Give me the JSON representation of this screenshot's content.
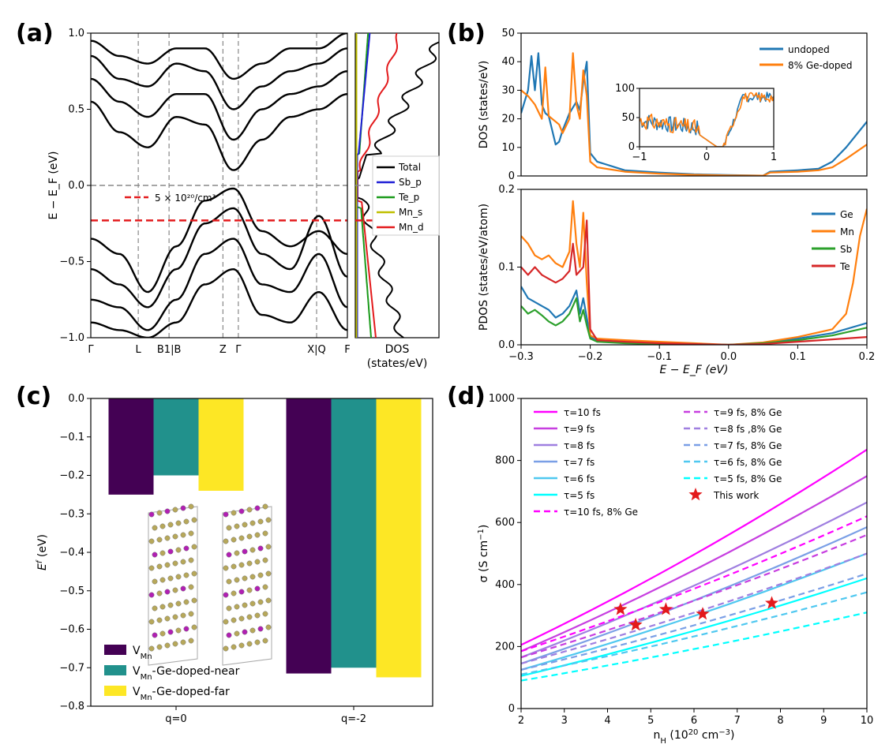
{
  "figure": {
    "panels": [
      "(a)",
      "(b)",
      "(c)",
      "(d)"
    ]
  },
  "chart_data": [
    {
      "id": "a",
      "type": "line",
      "title": "",
      "xlabel": "",
      "ylabel": "E − E_F (eV)",
      "ylim": [
        -1.0,
        1.0
      ],
      "yticks": [
        "1.0",
        "0.5",
        "0.0",
        "−0.5",
        "−1.0"
      ],
      "ytick_values": [
        1.0,
        0.5,
        0.0,
        -0.5,
        -1.0
      ],
      "kpath_labels": [
        "Γ",
        "L",
        "B1|B",
        "Z",
        "Γ",
        "X|Q",
        "F"
      ],
      "kpath_positions": [
        0,
        0.185,
        0.305,
        0.515,
        0.575,
        0.88,
        1.0
      ],
      "fermi_level": 0.0,
      "doping_line": -0.23,
      "annotation": "5 × 10²⁰/cm³",
      "bands_valence": [
        [
          -0.35,
          -0.45,
          -0.7,
          -0.4,
          -0.1,
          -0.02,
          -0.3,
          -0.4,
          -0.3,
          -0.45
        ],
        [
          -0.55,
          -0.65,
          -0.8,
          -0.55,
          -0.25,
          -0.15,
          -0.45,
          -0.55,
          -0.2,
          -0.6
        ],
        [
          -0.75,
          -0.8,
          -0.95,
          -0.75,
          -0.45,
          -0.35,
          -0.65,
          -0.7,
          -0.45,
          -0.8
        ],
        [
          -0.9,
          -0.95,
          -1.0,
          -0.9,
          -0.65,
          -0.55,
          -0.85,
          -0.9,
          -0.7,
          -0.95
        ]
      ],
      "bands_conduction": [
        [
          0.55,
          0.35,
          0.25,
          0.45,
          0.4,
          0.1,
          0.3,
          0.45,
          0.5,
          0.6
        ],
        [
          0.7,
          0.55,
          0.45,
          0.6,
          0.6,
          0.3,
          0.5,
          0.6,
          0.65,
          0.75
        ],
        [
          0.85,
          0.7,
          0.65,
          0.8,
          0.75,
          0.5,
          0.65,
          0.75,
          0.8,
          0.9
        ],
        [
          0.95,
          0.85,
          0.8,
          0.9,
          0.9,
          0.7,
          0.8,
          0.9,
          0.9,
          1.0
        ]
      ],
      "dos_panel": {
        "xlabel": "DOS\n(states/eV)",
        "xlabel_lines": [
          "DOS",
          "(states/eV)"
        ],
        "legend": [
          "Total",
          "Sb_p",
          "Te_p",
          "Mn_s",
          "Mn_d"
        ],
        "colors": {
          "Total": "#000000",
          "Sb_p": "#1f1fd6",
          "Te_p": "#1a9a1a",
          "Mn_s": "#bfbf00",
          "Mn_d": "#e31a1c"
        }
      }
    },
    {
      "id": "b-top",
      "type": "line",
      "xlabel": "",
      "ylabel": "DOS (states/eV)",
      "xlim": [
        -0.3,
        0.2
      ],
      "ylim": [
        0,
        50
      ],
      "yticks": [
        "0",
        "10",
        "20",
        "30",
        "40",
        "50"
      ],
      "ytick_values": [
        0,
        10,
        20,
        30,
        40,
        50
      ],
      "series": [
        {
          "name": "undoped",
          "color": "#1f77b4",
          "x": [
            -0.3,
            -0.29,
            -0.285,
            -0.28,
            -0.275,
            -0.27,
            -0.265,
            -0.26,
            -0.25,
            -0.245,
            -0.24,
            -0.23,
            -0.22,
            -0.215,
            -0.21,
            -0.205,
            -0.2,
            -0.19,
            -0.15,
            -0.1,
            -0.05,
            0.0,
            0.05,
            0.06,
            0.1,
            0.13,
            0.15,
            0.17,
            0.2
          ],
          "y": [
            22,
            30,
            42,
            30,
            43,
            25,
            22,
            21,
            11,
            12,
            16,
            22,
            26,
            23,
            33,
            40,
            8,
            5,
            2,
            1.2,
            0.6,
            0.3,
            0.1,
            1.5,
            2,
            2.5,
            5,
            10,
            19
          ]
        },
        {
          "name": "8% Ge-doped",
          "color": "#ff7f0e",
          "x": [
            -0.3,
            -0.29,
            -0.28,
            -0.27,
            -0.265,
            -0.26,
            -0.25,
            -0.245,
            -0.24,
            -0.23,
            -0.225,
            -0.22,
            -0.215,
            -0.21,
            -0.205,
            -0.2,
            -0.19,
            -0.15,
            -0.1,
            -0.05,
            0.0,
            0.05,
            0.06,
            0.1,
            0.13,
            0.15,
            0.17,
            0.2
          ],
          "y": [
            30,
            28,
            25,
            20,
            38,
            21,
            19,
            18,
            15,
            20,
            43,
            25,
            20,
            37,
            28,
            5,
            3,
            1.5,
            0.8,
            0.4,
            0.2,
            0.1,
            1.2,
            1.5,
            2,
            3,
            6,
            11
          ]
        }
      ],
      "legend": [
        "undoped",
        "8% Ge-doped"
      ],
      "inset": {
        "xlim": [
          -1,
          1
        ],
        "ylim": [
          0,
          100
        ],
        "xticks": [
          "−1",
          "0",
          "1"
        ],
        "xtick_values": [
          -1,
          0,
          1
        ],
        "yticks": [
          "0",
          "50",
          "100"
        ],
        "ytick_values": [
          0,
          50,
          100
        ]
      }
    },
    {
      "id": "b-bottom",
      "type": "line",
      "xlabel": "E − E_F (eV)",
      "ylabel": "PDOS (states/eV/atom)",
      "xlim": [
        -0.3,
        0.2
      ],
      "ylim": [
        0,
        0.2
      ],
      "xticks": [
        "−0.3",
        "−0.2",
        "−0.1",
        "0.0",
        "0.1",
        "0.2"
      ],
      "xtick_values": [
        -0.3,
        -0.2,
        -0.1,
        0.0,
        0.1,
        0.2
      ],
      "yticks": [
        "0.0",
        "0.1",
        "0.2"
      ],
      "ytick_values": [
        0.0,
        0.1,
        0.2
      ],
      "series": [
        {
          "name": "Ge",
          "color": "#1f77b4",
          "x": [
            -0.3,
            -0.29,
            -0.28,
            -0.27,
            -0.26,
            -0.25,
            -0.24,
            -0.23,
            -0.22,
            -0.215,
            -0.21,
            -0.205,
            -0.2,
            -0.19,
            -0.15,
            -0.1,
            -0.05,
            0.0,
            0.05,
            0.1,
            0.15,
            0.2
          ],
          "y": [
            0.075,
            0.06,
            0.055,
            0.05,
            0.045,
            0.035,
            0.04,
            0.05,
            0.07,
            0.04,
            0.06,
            0.035,
            0.01,
            0.005,
            0.003,
            0.002,
            0.001,
            0.0,
            0.002,
            0.008,
            0.015,
            0.028
          ]
        },
        {
          "name": "Mn",
          "color": "#ff7f0e",
          "x": [
            -0.3,
            -0.29,
            -0.28,
            -0.27,
            -0.26,
            -0.25,
            -0.24,
            -0.23,
            -0.225,
            -0.22,
            -0.215,
            -0.21,
            -0.205,
            -0.2,
            -0.19,
            -0.15,
            -0.1,
            -0.05,
            0.0,
            0.05,
            0.1,
            0.15,
            0.17,
            0.18,
            0.19,
            0.2
          ],
          "y": [
            0.14,
            0.13,
            0.115,
            0.11,
            0.115,
            0.105,
            0.1,
            0.12,
            0.185,
            0.13,
            0.1,
            0.17,
            0.08,
            0.012,
            0.008,
            0.006,
            0.004,
            0.002,
            0.0,
            0.003,
            0.01,
            0.02,
            0.04,
            0.08,
            0.14,
            0.175
          ]
        },
        {
          "name": "Sb",
          "color": "#2ca02c",
          "x": [
            -0.3,
            -0.29,
            -0.28,
            -0.27,
            -0.26,
            -0.25,
            -0.24,
            -0.23,
            -0.22,
            -0.215,
            -0.21,
            -0.205,
            -0.2,
            -0.19,
            -0.15,
            -0.1,
            -0.05,
            0.0,
            0.05,
            0.1,
            0.15,
            0.2
          ],
          "y": [
            0.05,
            0.04,
            0.045,
            0.038,
            0.03,
            0.025,
            0.03,
            0.04,
            0.06,
            0.03,
            0.045,
            0.025,
            0.008,
            0.004,
            0.002,
            0.001,
            0.001,
            0.0,
            0.002,
            0.006,
            0.012,
            0.022
          ]
        },
        {
          "name": "Te",
          "color": "#d62728",
          "x": [
            -0.3,
            -0.29,
            -0.28,
            -0.27,
            -0.26,
            -0.25,
            -0.24,
            -0.23,
            -0.225,
            -0.22,
            -0.21,
            -0.205,
            -0.2,
            -0.19,
            -0.15,
            -0.1,
            -0.05,
            0.0,
            0.05,
            0.1,
            0.15,
            0.2
          ],
          "y": [
            0.1,
            0.09,
            0.1,
            0.09,
            0.085,
            0.08,
            0.085,
            0.095,
            0.13,
            0.09,
            0.1,
            0.16,
            0.02,
            0.006,
            0.004,
            0.002,
            0.001,
            0.0,
            0.001,
            0.004,
            0.007,
            0.01
          ]
        }
      ],
      "legend": [
        "Ge",
        "Mn",
        "Sb",
        "Te"
      ]
    },
    {
      "id": "c",
      "type": "bar",
      "xlabel": "",
      "ylabel": "E^f (eV)",
      "categories": [
        "q=0",
        "q=-2"
      ],
      "ylim": [
        -0.8,
        0.0
      ],
      "yticks": [
        "0.0",
        "−0.1",
        "−0.2",
        "−0.3",
        "−0.4",
        "−0.5",
        "−0.6",
        "−0.7",
        "−0.8"
      ],
      "ytick_values": [
        0.0,
        -0.1,
        -0.2,
        -0.3,
        -0.4,
        -0.5,
        -0.6,
        -0.7,
        -0.8
      ],
      "series": [
        {
          "name": "V_Mn",
          "color": "#440154",
          "values": [
            -0.25,
            -0.715
          ]
        },
        {
          "name": "V_Mn-Ge-doped-near",
          "color": "#21918c",
          "values": [
            -0.2,
            -0.7
          ]
        },
        {
          "name": "V_Mn-Ge-doped-far",
          "color": "#fde725",
          "values": [
            -0.24,
            -0.725
          ]
        }
      ],
      "legend": [
        {
          "base": "V",
          "sub": "Mn",
          "rest": ""
        },
        {
          "base": "V",
          "sub": "Mn",
          "rest": "-Ge-doped-near"
        },
        {
          "base": "V",
          "sub": "Mn",
          "rest": "-Ge-doped-far"
        }
      ]
    },
    {
      "id": "d",
      "type": "line",
      "xlabel": "n_H (10^20 cm^-3)",
      "ylabel": "σ (S cm^-1)",
      "xlim": [
        2,
        10
      ],
      "ylim": [
        0,
        1000
      ],
      "xticks": [
        "2",
        "3",
        "4",
        "5",
        "6",
        "7",
        "8",
        "9",
        "10"
      ],
      "xtick_values": [
        2,
        3,
        4,
        5,
        6,
        7,
        8,
        9,
        10
      ],
      "yticks": [
        "0",
        "200",
        "400",
        "600",
        "800",
        "1000"
      ],
      "ytick_values": [
        0,
        200,
        400,
        600,
        800,
        1000
      ],
      "x": [
        2,
        10
      ],
      "series": [
        {
          "name": "τ=10 fs",
          "color": "#ff00ff",
          "dash": false,
          "values": [
            205,
            835
          ]
        },
        {
          "name": "τ=9 fs",
          "color": "#c73fe0",
          "dash": false,
          "values": [
            185,
            750
          ]
        },
        {
          "name": "τ=8 fs",
          "color": "#9f7fe0",
          "dash": false,
          "values": [
            165,
            665
          ]
        },
        {
          "name": "τ=7 fs",
          "color": "#7a9fe6",
          "dash": false,
          "values": [
            145,
            585
          ]
        },
        {
          "name": "τ=6 fs",
          "color": "#4fc8f0",
          "dash": false,
          "values": [
            125,
            500
          ]
        },
        {
          "name": "τ=5 fs",
          "color": "#00ffff",
          "dash": false,
          "values": [
            105,
            420
          ]
        },
        {
          "name": "τ=10 fs, 8% Ge",
          "color": "#ff00ff",
          "dash": true,
          "values": [
            185,
            620
          ]
        },
        {
          "name": "τ=9 fs, 8% Ge",
          "color": "#c73fe0",
          "dash": true,
          "values": [
            165,
            560
          ]
        },
        {
          "name": "τ=8 fs ,8% Ge",
          "color": "#9f7fe0",
          "dash": true,
          "values": [
            145,
            500
          ]
        },
        {
          "name": "τ=7 fs, 8% Ge",
          "color": "#7a9fe6",
          "dash": true,
          "values": [
            125,
            435
          ]
        },
        {
          "name": "τ=6 fs, 8% Ge",
          "color": "#4fc8f0",
          "dash": true,
          "values": [
            110,
            375
          ]
        },
        {
          "name": "τ=5 fs, 8% Ge",
          "color": "#00ffff",
          "dash": true,
          "values": [
            90,
            310
          ]
        }
      ],
      "points": {
        "name": "This work",
        "color": "#e31a1c",
        "x": [
          4.3,
          4.65,
          5.35,
          6.2,
          7.8
        ],
        "y": [
          320,
          270,
          320,
          305,
          340
        ]
      },
      "legend_col1": [
        "τ=10 fs",
        "τ=9 fs",
        "τ=8 fs",
        "τ=7 fs",
        "τ=6 fs",
        "τ=5 fs",
        "τ=10 fs, 8% Ge"
      ],
      "legend_col2": [
        "τ=9 fs, 8% Ge",
        "τ=8 fs ,8% Ge",
        "τ=7 fs, 8% Ge",
        "τ=6 fs, 8% Ge",
        "τ=5 fs, 8% Ge",
        "This work"
      ]
    }
  ]
}
